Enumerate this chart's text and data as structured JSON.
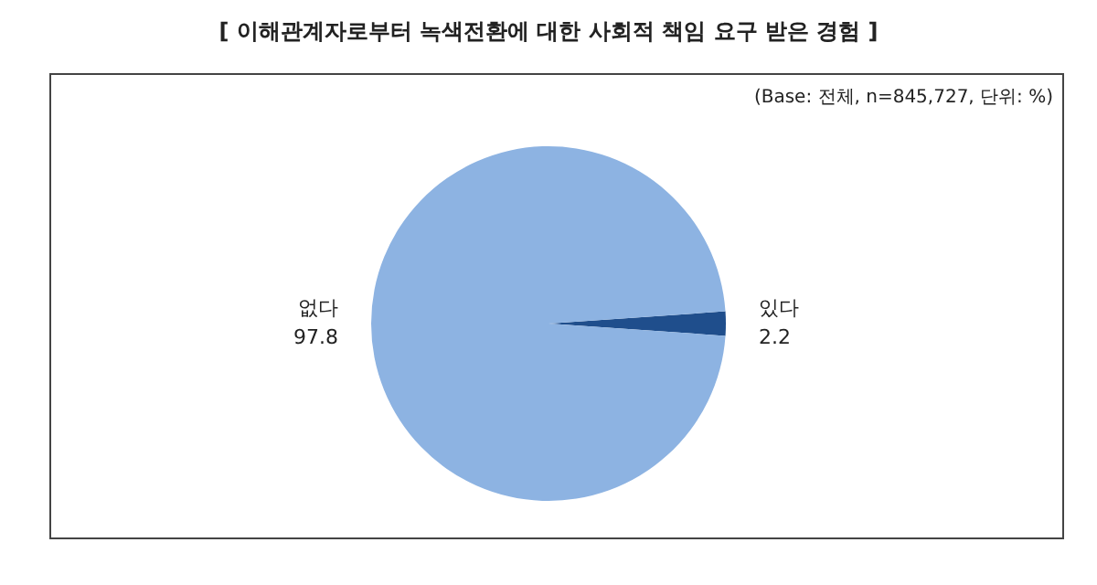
{
  "chart_data": {
    "type": "pie",
    "title": "[ 이해관계자로부터 녹색전환에 대한 사회적 책임 요구 받은 경험 ]",
    "subtitle": "(Base: 전체, n=845,727, 단위: %)",
    "categories": [
      "있다",
      "없다"
    ],
    "values": [
      2.2,
      97.8
    ],
    "colors": [
      "#1f4e8c",
      "#8db3e2"
    ],
    "data_labels": true,
    "legend": false
  }
}
